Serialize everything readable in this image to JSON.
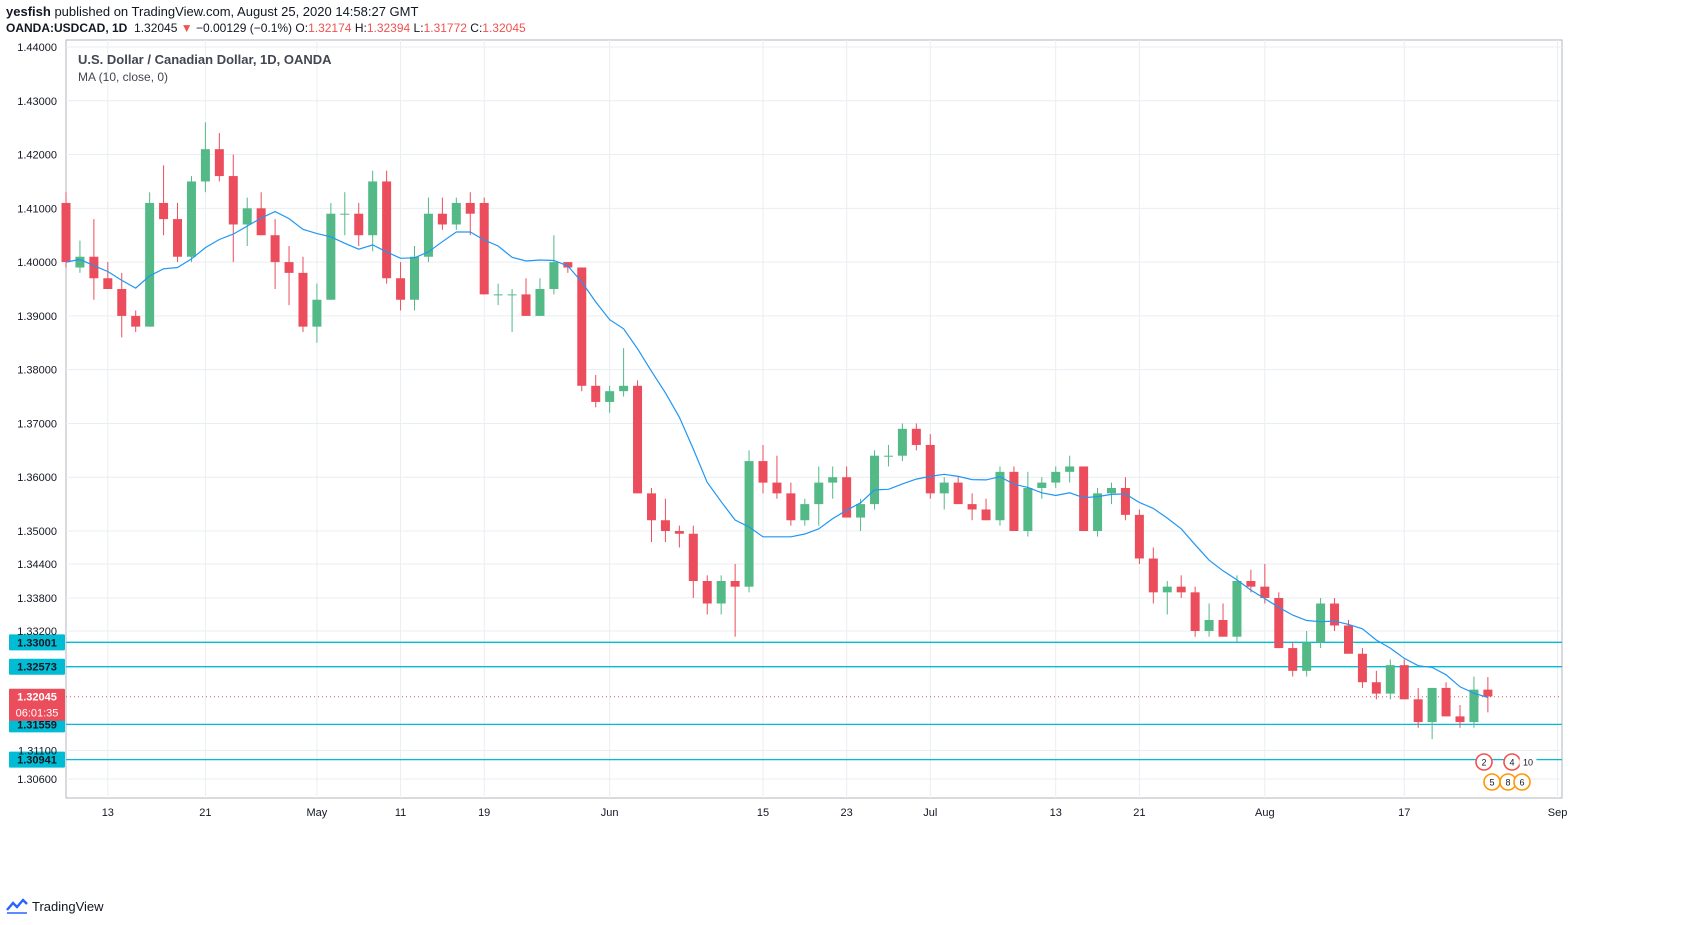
{
  "header": {
    "publisher": "yesfish",
    "published_text": "published on TradingView.com, August 25, 2020 14:58:27 GMT",
    "symbol": "OANDA:USDCAD, 1D",
    "last": "1.32045",
    "change": "−0.00129 (−0.1%)",
    "o_label": "O:",
    "o_value": "1.32174",
    "h_label": "H:",
    "h_value": "1.32394",
    "l_label": "L:",
    "l_value": "1.31772",
    "c_label": "C:",
    "c_value": "1.32045"
  },
  "legend": {
    "title": "U.S. Dollar / Canadian Dollar, 1D, OANDA",
    "indicator": "MA (10, close, 0)"
  },
  "footer": {
    "brand": "TradingView"
  },
  "colors": {
    "up": "#53b987",
    "down": "#eb4d5c",
    "ma": "#2196f3",
    "hline": "#00bcd4",
    "grid": "#e9eef2"
  },
  "chart_data": {
    "type": "candlestick",
    "y_ticks": [
      "1.44000",
      "1.43000",
      "1.42000",
      "1.41000",
      "1.40000",
      "1.39000",
      "1.38000",
      "1.37000",
      "1.36000",
      "1.35000",
      "1.34400",
      "1.33800",
      "1.33200",
      "1.32573",
      "1.32045",
      "1.31559",
      "1.31100",
      "1.30941",
      "1.30600"
    ],
    "x_ticks": [
      {
        "label": "13",
        "i": 3
      },
      {
        "label": "21",
        "i": 10
      },
      {
        "label": "May",
        "i": 18
      },
      {
        "label": "11",
        "i": 24
      },
      {
        "label": "19",
        "i": 30
      },
      {
        "label": "Jun",
        "i": 39
      },
      {
        "label": "15",
        "i": 50
      },
      {
        "label": "23",
        "i": 56
      },
      {
        "label": "Jul",
        "i": 62
      },
      {
        "label": "13",
        "i": 71
      },
      {
        "label": "21",
        "i": 77
      },
      {
        "label": "Aug",
        "i": 86
      },
      {
        "label": "17",
        "i": 96
      },
      {
        "label": "Sep",
        "i": 107
      }
    ],
    "horizontal_lines": [
      {
        "value": 1.33001,
        "label": "1.33001"
      },
      {
        "value": 1.32573,
        "label": "1.32573"
      },
      {
        "value": 1.31559,
        "label": "1.31559"
      },
      {
        "value": 1.30941,
        "label": "1.30941"
      }
    ],
    "last_price": {
      "value": 1.32045,
      "label": "1.32045",
      "countdown": "06:01:35"
    },
    "events": [
      "2",
      "4",
      "10",
      "5",
      "8",
      "6"
    ],
    "candles": [
      [
        1.411,
        1.413,
        1.399,
        1.4
      ],
      [
        1.399,
        1.404,
        1.398,
        1.401
      ],
      [
        1.401,
        1.408,
        1.393,
        1.397
      ],
      [
        1.397,
        1.4,
        1.395,
        1.395
      ],
      [
        1.395,
        1.398,
        1.386,
        1.39
      ],
      [
        1.39,
        1.391,
        1.387,
        1.388
      ],
      [
        1.388,
        1.413,
        1.388,
        1.411
      ],
      [
        1.411,
        1.418,
        1.405,
        1.408
      ],
      [
        1.408,
        1.411,
        1.4,
        1.401
      ],
      [
        1.401,
        1.416,
        1.4,
        1.415
      ],
      [
        1.415,
        1.426,
        1.413,
        1.421
      ],
      [
        1.421,
        1.424,
        1.415,
        1.416
      ],
      [
        1.416,
        1.42,
        1.4,
        1.407
      ],
      [
        1.407,
        1.412,
        1.403,
        1.41
      ],
      [
        1.41,
        1.413,
        1.405,
        1.405
      ],
      [
        1.405,
        1.408,
        1.395,
        1.4
      ],
      [
        1.4,
        1.403,
        1.392,
        1.398
      ],
      [
        1.398,
        1.401,
        1.387,
        1.388
      ],
      [
        1.388,
        1.396,
        1.385,
        1.393
      ],
      [
        1.393,
        1.411,
        1.393,
        1.409
      ],
      [
        1.409,
        1.413,
        1.405,
        1.409
      ],
      [
        1.409,
        1.411,
        1.403,
        1.405
      ],
      [
        1.405,
        1.417,
        1.402,
        1.415
      ],
      [
        1.415,
        1.417,
        1.396,
        1.397
      ],
      [
        1.397,
        1.4,
        1.391,
        1.393
      ],
      [
        1.393,
        1.403,
        1.391,
        1.401
      ],
      [
        1.401,
        1.412,
        1.4,
        1.409
      ],
      [
        1.409,
        1.412,
        1.406,
        1.407
      ],
      [
        1.407,
        1.412,
        1.406,
        1.411
      ],
      [
        1.411,
        1.413,
        1.405,
        1.409
      ],
      [
        1.411,
        1.412,
        1.394,
        1.394
      ],
      [
        1.394,
        1.396,
        1.392,
        1.394
      ],
      [
        1.394,
        1.395,
        1.387,
        1.394
      ],
      [
        1.394,
        1.397,
        1.39,
        1.39
      ],
      [
        1.39,
        1.397,
        1.39,
        1.395
      ],
      [
        1.395,
        1.405,
        1.394,
        1.4
      ],
      [
        1.4,
        1.4,
        1.398,
        1.399
      ],
      [
        1.399,
        1.399,
        1.376,
        1.377
      ],
      [
        1.377,
        1.379,
        1.373,
        1.374
      ],
      [
        1.374,
        1.377,
        1.372,
        1.376
      ],
      [
        1.376,
        1.384,
        1.375,
        1.377
      ],
      [
        1.377,
        1.378,
        1.357,
        1.357
      ],
      [
        1.357,
        1.358,
        1.348,
        1.352
      ],
      [
        1.352,
        1.356,
        1.348,
        1.35
      ],
      [
        1.35,
        1.351,
        1.347,
        1.3495
      ],
      [
        1.3495,
        1.351,
        1.338,
        1.341
      ],
      [
        1.341,
        1.342,
        1.335,
        1.337
      ],
      [
        1.337,
        1.342,
        1.335,
        1.341
      ],
      [
        1.341,
        1.344,
        1.331,
        1.34
      ],
      [
        1.34,
        1.365,
        1.339,
        1.363
      ],
      [
        1.363,
        1.366,
        1.357,
        1.359
      ],
      [
        1.359,
        1.364,
        1.356,
        1.357
      ],
      [
        1.357,
        1.359,
        1.351,
        1.352
      ],
      [
        1.352,
        1.356,
        1.351,
        1.355
      ],
      [
        1.355,
        1.362,
        1.351,
        1.359
      ],
      [
        1.359,
        1.362,
        1.356,
        1.36
      ],
      [
        1.36,
        1.362,
        1.353,
        1.3525
      ],
      [
        1.3525,
        1.356,
        1.35,
        1.355
      ],
      [
        1.355,
        1.365,
        1.354,
        1.364
      ],
      [
        1.364,
        1.366,
        1.362,
        1.364
      ],
      [
        1.364,
        1.37,
        1.363,
        1.369
      ],
      [
        1.369,
        1.37,
        1.365,
        1.366
      ],
      [
        1.366,
        1.368,
        1.356,
        1.357
      ],
      [
        1.357,
        1.36,
        1.354,
        1.359
      ],
      [
        1.359,
        1.36,
        1.355,
        1.355
      ],
      [
        1.355,
        1.357,
        1.352,
        1.354
      ],
      [
        1.354,
        1.356,
        1.352,
        1.352
      ],
      [
        1.352,
        1.362,
        1.351,
        1.361
      ],
      [
        1.361,
        1.362,
        1.35,
        1.35
      ],
      [
        1.35,
        1.361,
        1.349,
        1.358
      ],
      [
        1.358,
        1.36,
        1.356,
        1.359
      ],
      [
        1.359,
        1.362,
        1.358,
        1.361
      ],
      [
        1.361,
        1.364,
        1.359,
        1.362
      ],
      [
        1.362,
        1.362,
        1.35,
        1.35
      ],
      [
        1.35,
        1.358,
        1.349,
        1.357
      ],
      [
        1.357,
        1.359,
        1.355,
        1.358
      ],
      [
        1.358,
        1.36,
        1.352,
        1.353
      ],
      [
        1.353,
        1.354,
        1.344,
        1.345
      ],
      [
        1.345,
        1.347,
        1.337,
        1.339
      ],
      [
        1.339,
        1.341,
        1.335,
        1.34
      ],
      [
        1.34,
        1.342,
        1.338,
        1.339
      ],
      [
        1.339,
        1.34,
        1.331,
        1.332
      ],
      [
        1.332,
        1.337,
        1.331,
        1.334
      ],
      [
        1.334,
        1.337,
        1.331,
        1.331
      ],
      [
        1.331,
        1.342,
        1.33,
        1.341
      ],
      [
        1.341,
        1.343,
        1.339,
        1.34
      ],
      [
        1.34,
        1.344,
        1.337,
        1.338
      ],
      [
        1.338,
        1.339,
        1.329,
        1.329
      ],
      [
        1.329,
        1.33,
        1.324,
        1.325
      ],
      [
        1.325,
        1.332,
        1.324,
        1.33
      ],
      [
        1.33,
        1.338,
        1.329,
        1.337
      ],
      [
        1.337,
        1.338,
        1.332,
        1.333
      ],
      [
        1.333,
        1.334,
        1.329,
        1.328
      ],
      [
        1.328,
        1.329,
        1.322,
        1.323
      ],
      [
        1.323,
        1.325,
        1.32,
        1.321
      ],
      [
        1.321,
        1.327,
        1.32,
        1.326
      ],
      [
        1.326,
        1.327,
        1.32,
        1.32
      ],
      [
        1.32,
        1.322,
        1.315,
        1.316
      ],
      [
        1.316,
        1.322,
        1.313,
        1.322
      ],
      [
        1.322,
        1.323,
        1.317,
        1.317
      ],
      [
        1.317,
        1.319,
        1.315,
        1.316
      ],
      [
        1.316,
        1.324,
        1.315,
        1.3217
      ],
      [
        1.3217,
        1.3239,
        1.3177,
        1.3205
      ]
    ]
  }
}
